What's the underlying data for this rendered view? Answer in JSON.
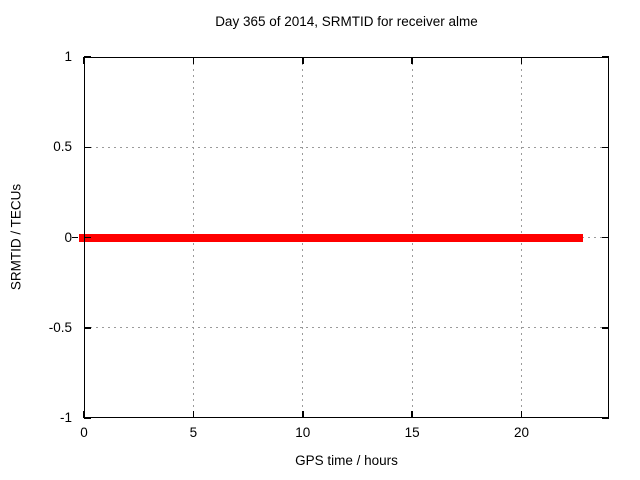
{
  "figure": {
    "background": "#ffffff"
  },
  "chart_data": {
    "type": "line",
    "title": "Day 365 of 2014, SRMTID for receiver alme",
    "xlabel": "GPS time / hours",
    "ylabel": "SRMTID / TECUs",
    "xlim": [
      0,
      24
    ],
    "ylim": [
      -1,
      1
    ],
    "x_ticks": [
      0,
      5,
      10,
      15,
      20
    ],
    "y_ticks": [
      1,
      0.5,
      0,
      -0.5,
      -1
    ],
    "grid": true,
    "legend_position": "none",
    "series": [
      {
        "name": "SRMTID",
        "color": "#ff0000",
        "thickness_px": 8,
        "points": [
          [
            0,
            0
          ],
          [
            22.8,
            0
          ]
        ],
        "description": "constant zero line from 0 to 22.8 hours"
      }
    ],
    "colors": {
      "axis": "#000000",
      "grid": "#9b9b9b",
      "text": "#000000",
      "series_red": "#ff0000"
    }
  }
}
